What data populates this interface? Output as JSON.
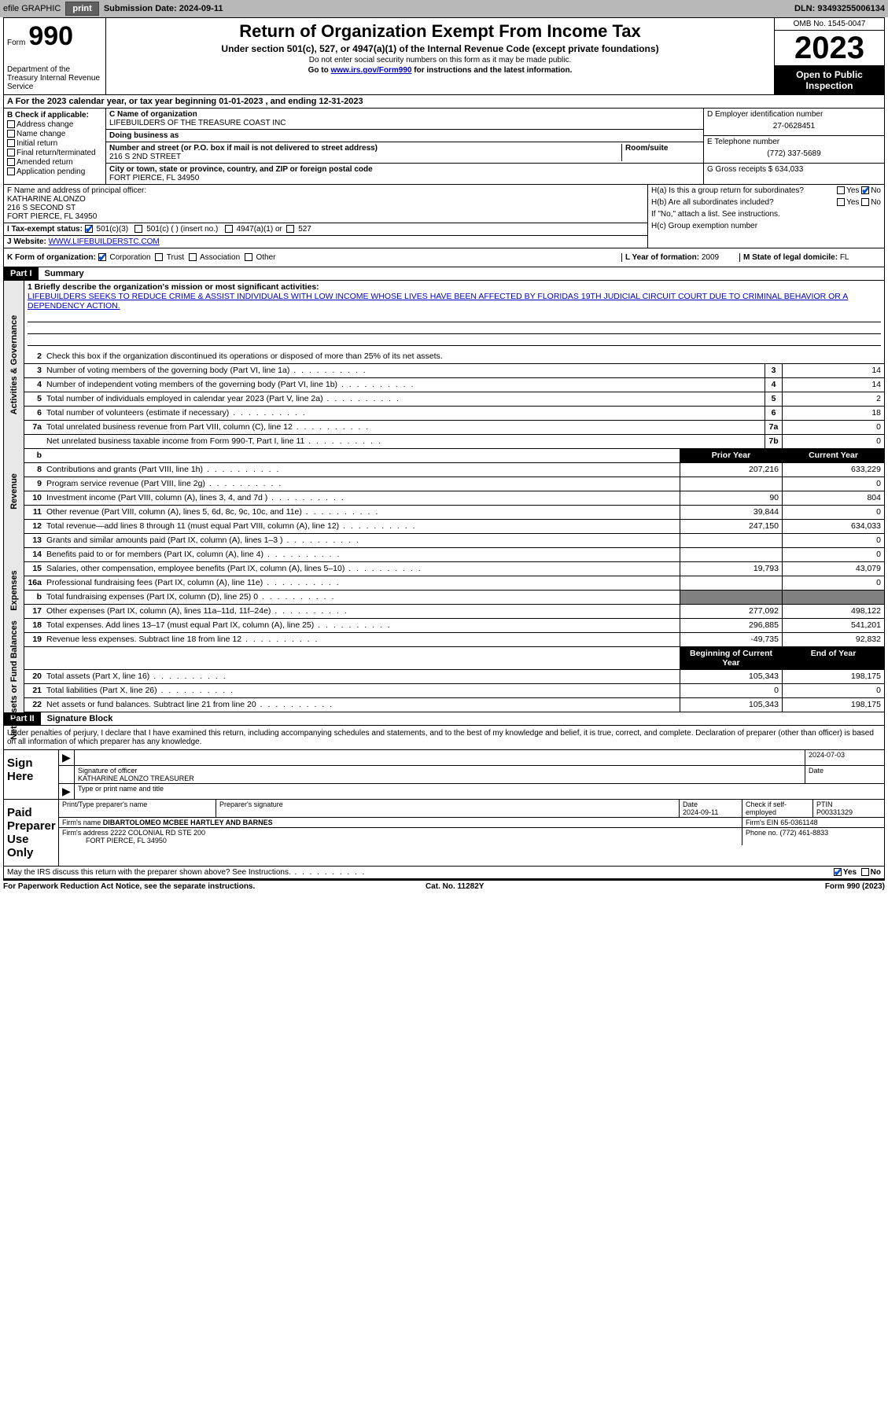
{
  "topbar": {
    "efile": "efile GRAPHIC",
    "print": "print",
    "submission_label": "Submission Date: ",
    "submission_date": "2024-09-11",
    "dln_label": "DLN: ",
    "dln": "93493255006134"
  },
  "header": {
    "form_word": "Form",
    "form_num": "990",
    "dept": "Department of the Treasury\nInternal Revenue Service",
    "title": "Return of Organization Exempt From Income Tax",
    "sub1": "Under section 501(c), 527, or 4947(a)(1) of the Internal Revenue Code (except private foundations)",
    "sub2": "Do not enter social security numbers on this form as it may be made public.",
    "sub3_pre": "Go to ",
    "sub3_link": "www.irs.gov/Form990",
    "sub3_post": " for instructions and the latest information.",
    "omb": "OMB No. 1545-0047",
    "year": "2023",
    "inspect": "Open to Public Inspection"
  },
  "line_a": "A For the 2023 calendar year, or tax year beginning 01-01-2023   , and ending 12-31-2023",
  "section_b": {
    "label": "B Check if applicable:",
    "items": [
      "Address change",
      "Name change",
      "Initial return",
      "Final return/terminated",
      "Amended return",
      "Application pending"
    ]
  },
  "section_c": {
    "name_lbl": "C Name of organization",
    "name": "LIFEBUILDERS OF THE TREASURE COAST INC",
    "dba_lbl": "Doing business as",
    "addr_lbl": "Number and street (or P.O. box if mail is not delivered to street address)",
    "addr": "216 S 2ND STREET",
    "room_lbl": "Room/suite",
    "city_lbl": "City or town, state or province, country, and ZIP or foreign postal code",
    "city": "FORT PIERCE, FL  34950"
  },
  "section_d": {
    "ein_lbl": "D Employer identification number",
    "ein": "27-0628451",
    "tel_lbl": "E Telephone number",
    "tel": "(772) 337-5689",
    "gross_lbl": "G Gross receipts $ ",
    "gross": "634,033"
  },
  "section_f": {
    "lbl": "F Name and address of principal officer:",
    "name": "KATHARINE ALONZO",
    "addr1": "216 S SECOND ST",
    "addr2": "FORT PIERCE, FL  34950"
  },
  "section_h": {
    "a": "H(a)  Is this a group return for subordinates?",
    "b": "H(b)  Are all subordinates included?",
    "b_note": "If \"No,\" attach a list. See instructions.",
    "c": "H(c)  Group exemption number ",
    "yes": "Yes",
    "no": "No"
  },
  "section_i": {
    "lbl": "I   Tax-exempt status:",
    "opts": [
      "501(c)(3)",
      "501(c) (  ) (insert no.)",
      "4947(a)(1) or",
      "527"
    ]
  },
  "section_j": {
    "lbl": "J   Website: ",
    "val": "WWW.LIFEBUILDERSTC.COM"
  },
  "section_k": {
    "lbl": "K Form of organization:",
    "opts": [
      "Corporation",
      "Trust",
      "Association",
      "Other"
    ],
    "l_lbl": "L Year of formation: ",
    "l_val": "2009",
    "m_lbl": "M State of legal domicile: ",
    "m_val": "FL"
  },
  "part1": {
    "hdr": "Part I",
    "title": "Summary",
    "tabs": [
      "Activities & Governance",
      "Revenue",
      "Expenses",
      "Net Assets or Fund Balances"
    ],
    "line1_lbl": "1  Briefly describe the organization's mission or most significant activities:",
    "line1_txt": "LIFEBUILDERS SEEKS TO REDUCE CRIME & ASSIST INDIVIDUALS WITH LOW INCOME WHOSE LIVES HAVE BEEN AFFECTED BY FLORIDAS 19TH JUDICIAL CIRCUIT COURT DUE TO CRIMINAL BEHAVIOR OR A DEPENDENCY ACTION.",
    "line2": "Check this box      if the organization discontinued its operations or disposed of more than 25% of its net assets.",
    "rows_a": [
      {
        "n": "3",
        "t": "Number of voting members of the governing body (Part VI, line 1a)",
        "b": "3",
        "v": "14"
      },
      {
        "n": "4",
        "t": "Number of independent voting members of the governing body (Part VI, line 1b)",
        "b": "4",
        "v": "14"
      },
      {
        "n": "5",
        "t": "Total number of individuals employed in calendar year 2023 (Part V, line 2a)",
        "b": "5",
        "v": "2"
      },
      {
        "n": "6",
        "t": "Total number of volunteers (estimate if necessary)",
        "b": "6",
        "v": "18"
      },
      {
        "n": "7a",
        "t": "Total unrelated business revenue from Part VIII, column (C), line 12",
        "b": "7a",
        "v": "0"
      },
      {
        "n": "",
        "t": "Net unrelated business taxable income from Form 990-T, Part I, line 11",
        "b": "7b",
        "v": "0"
      }
    ],
    "col_hdr_prior": "Prior Year",
    "col_hdr_curr": "Current Year",
    "rows_r": [
      {
        "n": "8",
        "t": "Contributions and grants (Part VIII, line 1h)",
        "p": "207,216",
        "c": "633,229"
      },
      {
        "n": "9",
        "t": "Program service revenue (Part VIII, line 2g)",
        "p": "",
        "c": "0"
      },
      {
        "n": "10",
        "t": "Investment income (Part VIII, column (A), lines 3, 4, and 7d )",
        "p": "90",
        "c": "804"
      },
      {
        "n": "11",
        "t": "Other revenue (Part VIII, column (A), lines 5, 6d, 8c, 9c, 10c, and 11e)",
        "p": "39,844",
        "c": "0"
      },
      {
        "n": "12",
        "t": "Total revenue—add lines 8 through 11 (must equal Part VIII, column (A), line 12)",
        "p": "247,150",
        "c": "634,033"
      }
    ],
    "rows_e": [
      {
        "n": "13",
        "t": "Grants and similar amounts paid (Part IX, column (A), lines 1–3 )",
        "p": "",
        "c": "0"
      },
      {
        "n": "14",
        "t": "Benefits paid to or for members (Part IX, column (A), line 4)",
        "p": "",
        "c": "0"
      },
      {
        "n": "15",
        "t": "Salaries, other compensation, employee benefits (Part IX, column (A), lines 5–10)",
        "p": "19,793",
        "c": "43,079"
      },
      {
        "n": "16a",
        "t": "Professional fundraising fees (Part IX, column (A), line 11e)",
        "p": "",
        "c": "0"
      },
      {
        "n": "b",
        "t": "Total fundraising expenses (Part IX, column (D), line 25) 0",
        "p": "shade",
        "c": "shade"
      },
      {
        "n": "17",
        "t": "Other expenses (Part IX, column (A), lines 11a–11d, 11f–24e)",
        "p": "277,092",
        "c": "498,122"
      },
      {
        "n": "18",
        "t": "Total expenses. Add lines 13–17 (must equal Part IX, column (A), line 25)",
        "p": "296,885",
        "c": "541,201"
      },
      {
        "n": "19",
        "t": "Revenue less expenses. Subtract line 18 from line 12",
        "p": "-49,735",
        "c": "92,832"
      }
    ],
    "col_hdr_beg": "Beginning of Current Year",
    "col_hdr_end": "End of Year",
    "rows_n": [
      {
        "n": "20",
        "t": "Total assets (Part X, line 16)",
        "p": "105,343",
        "c": "198,175"
      },
      {
        "n": "21",
        "t": "Total liabilities (Part X, line 26)",
        "p": "0",
        "c": "0"
      },
      {
        "n": "22",
        "t": "Net assets or fund balances. Subtract line 21 from line 20",
        "p": "105,343",
        "c": "198,175"
      }
    ]
  },
  "part2": {
    "hdr": "Part II",
    "title": "Signature Block",
    "intro": "Under penalties of perjury, I declare that I have examined this return, including accompanying schedules and statements, and to the best of my knowledge and belief, it is true, correct, and complete. Declaration of preparer (other than officer) is based on all information of which preparer has any knowledge."
  },
  "sign": {
    "here": "Sign Here",
    "sig_officer": "Signature of officer",
    "officer_name": "KATHARINE ALONZO  TREASURER",
    "type_lbl": "Type or print name and title",
    "date_lbl": "Date",
    "date": "2024-07-03"
  },
  "preparer": {
    "lbl": "Paid Preparer Use Only",
    "name_lbl": "Print/Type preparer's name",
    "sig_lbl": "Preparer's signature",
    "date_lbl": "Date",
    "date": "2024-09-11",
    "check_lbl": "Check        if self-employed",
    "ptin_lbl": "PTIN",
    "ptin": "P00331329",
    "firm_name_lbl": "Firm's name   ",
    "firm_name": "DIBARTOLOMEO MCBEE HARTLEY AND BARNES",
    "firm_ein_lbl": "Firm's EIN  ",
    "firm_ein": "65-0361148",
    "firm_addr_lbl": "Firm's address ",
    "firm_addr": "2222 COLONIAL RD STE 200",
    "firm_city": "FORT PIERCE, FL  34950",
    "phone_lbl": "Phone no. ",
    "phone": "(772) 461-8833"
  },
  "discuss": "May the IRS discuss this return with the preparer shown above? See Instructions.",
  "footer": {
    "pra": "For Paperwork Reduction Act Notice, see the separate instructions.",
    "cat": "Cat. No. 11282Y",
    "form": "Form 990 (2023)"
  }
}
